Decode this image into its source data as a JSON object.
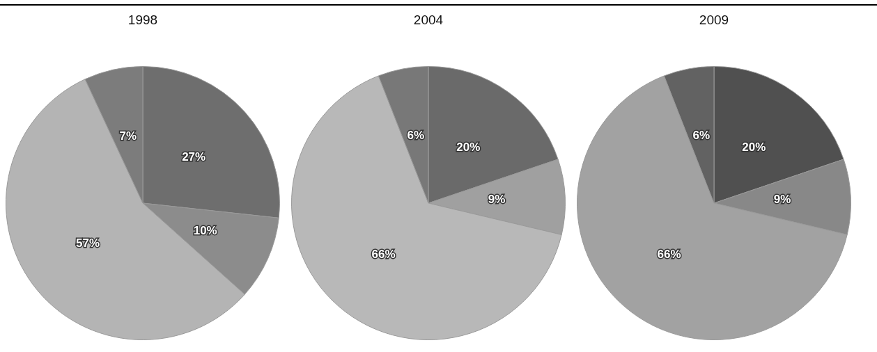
{
  "chart_data": [
    {
      "type": "pie",
      "title": "1998",
      "categories": [
        null,
        null,
        null,
        null
      ],
      "values": [
        27,
        10,
        57,
        7
      ],
      "colors": [
        "#6e6e6e",
        "#8c8c8c",
        "#b4b4b4",
        "#7c7c7c"
      ],
      "value_labels": [
        "27%",
        "10%",
        "57%",
        "7%"
      ],
      "legend": false
    },
    {
      "type": "pie",
      "title": "2004",
      "categories": [
        null,
        null,
        null,
        null
      ],
      "values": [
        20,
        9,
        66,
        6
      ],
      "colors": [
        "#6a6a6a",
        "#a0a0a0",
        "#b8b8b8",
        "#787878"
      ],
      "value_labels": [
        "20%",
        "9%",
        "66%",
        "6%"
      ],
      "legend": false
    },
    {
      "type": "pie",
      "title": "2009",
      "categories": [
        null,
        null,
        null,
        null
      ],
      "values": [
        20,
        9,
        66,
        6
      ],
      "colors": [
        "#505050",
        "#888888",
        "#a2a2a2",
        "#626262"
      ],
      "value_labels": [
        "20%",
        "9%",
        "66%",
        "6%"
      ],
      "legend": false
    }
  ]
}
